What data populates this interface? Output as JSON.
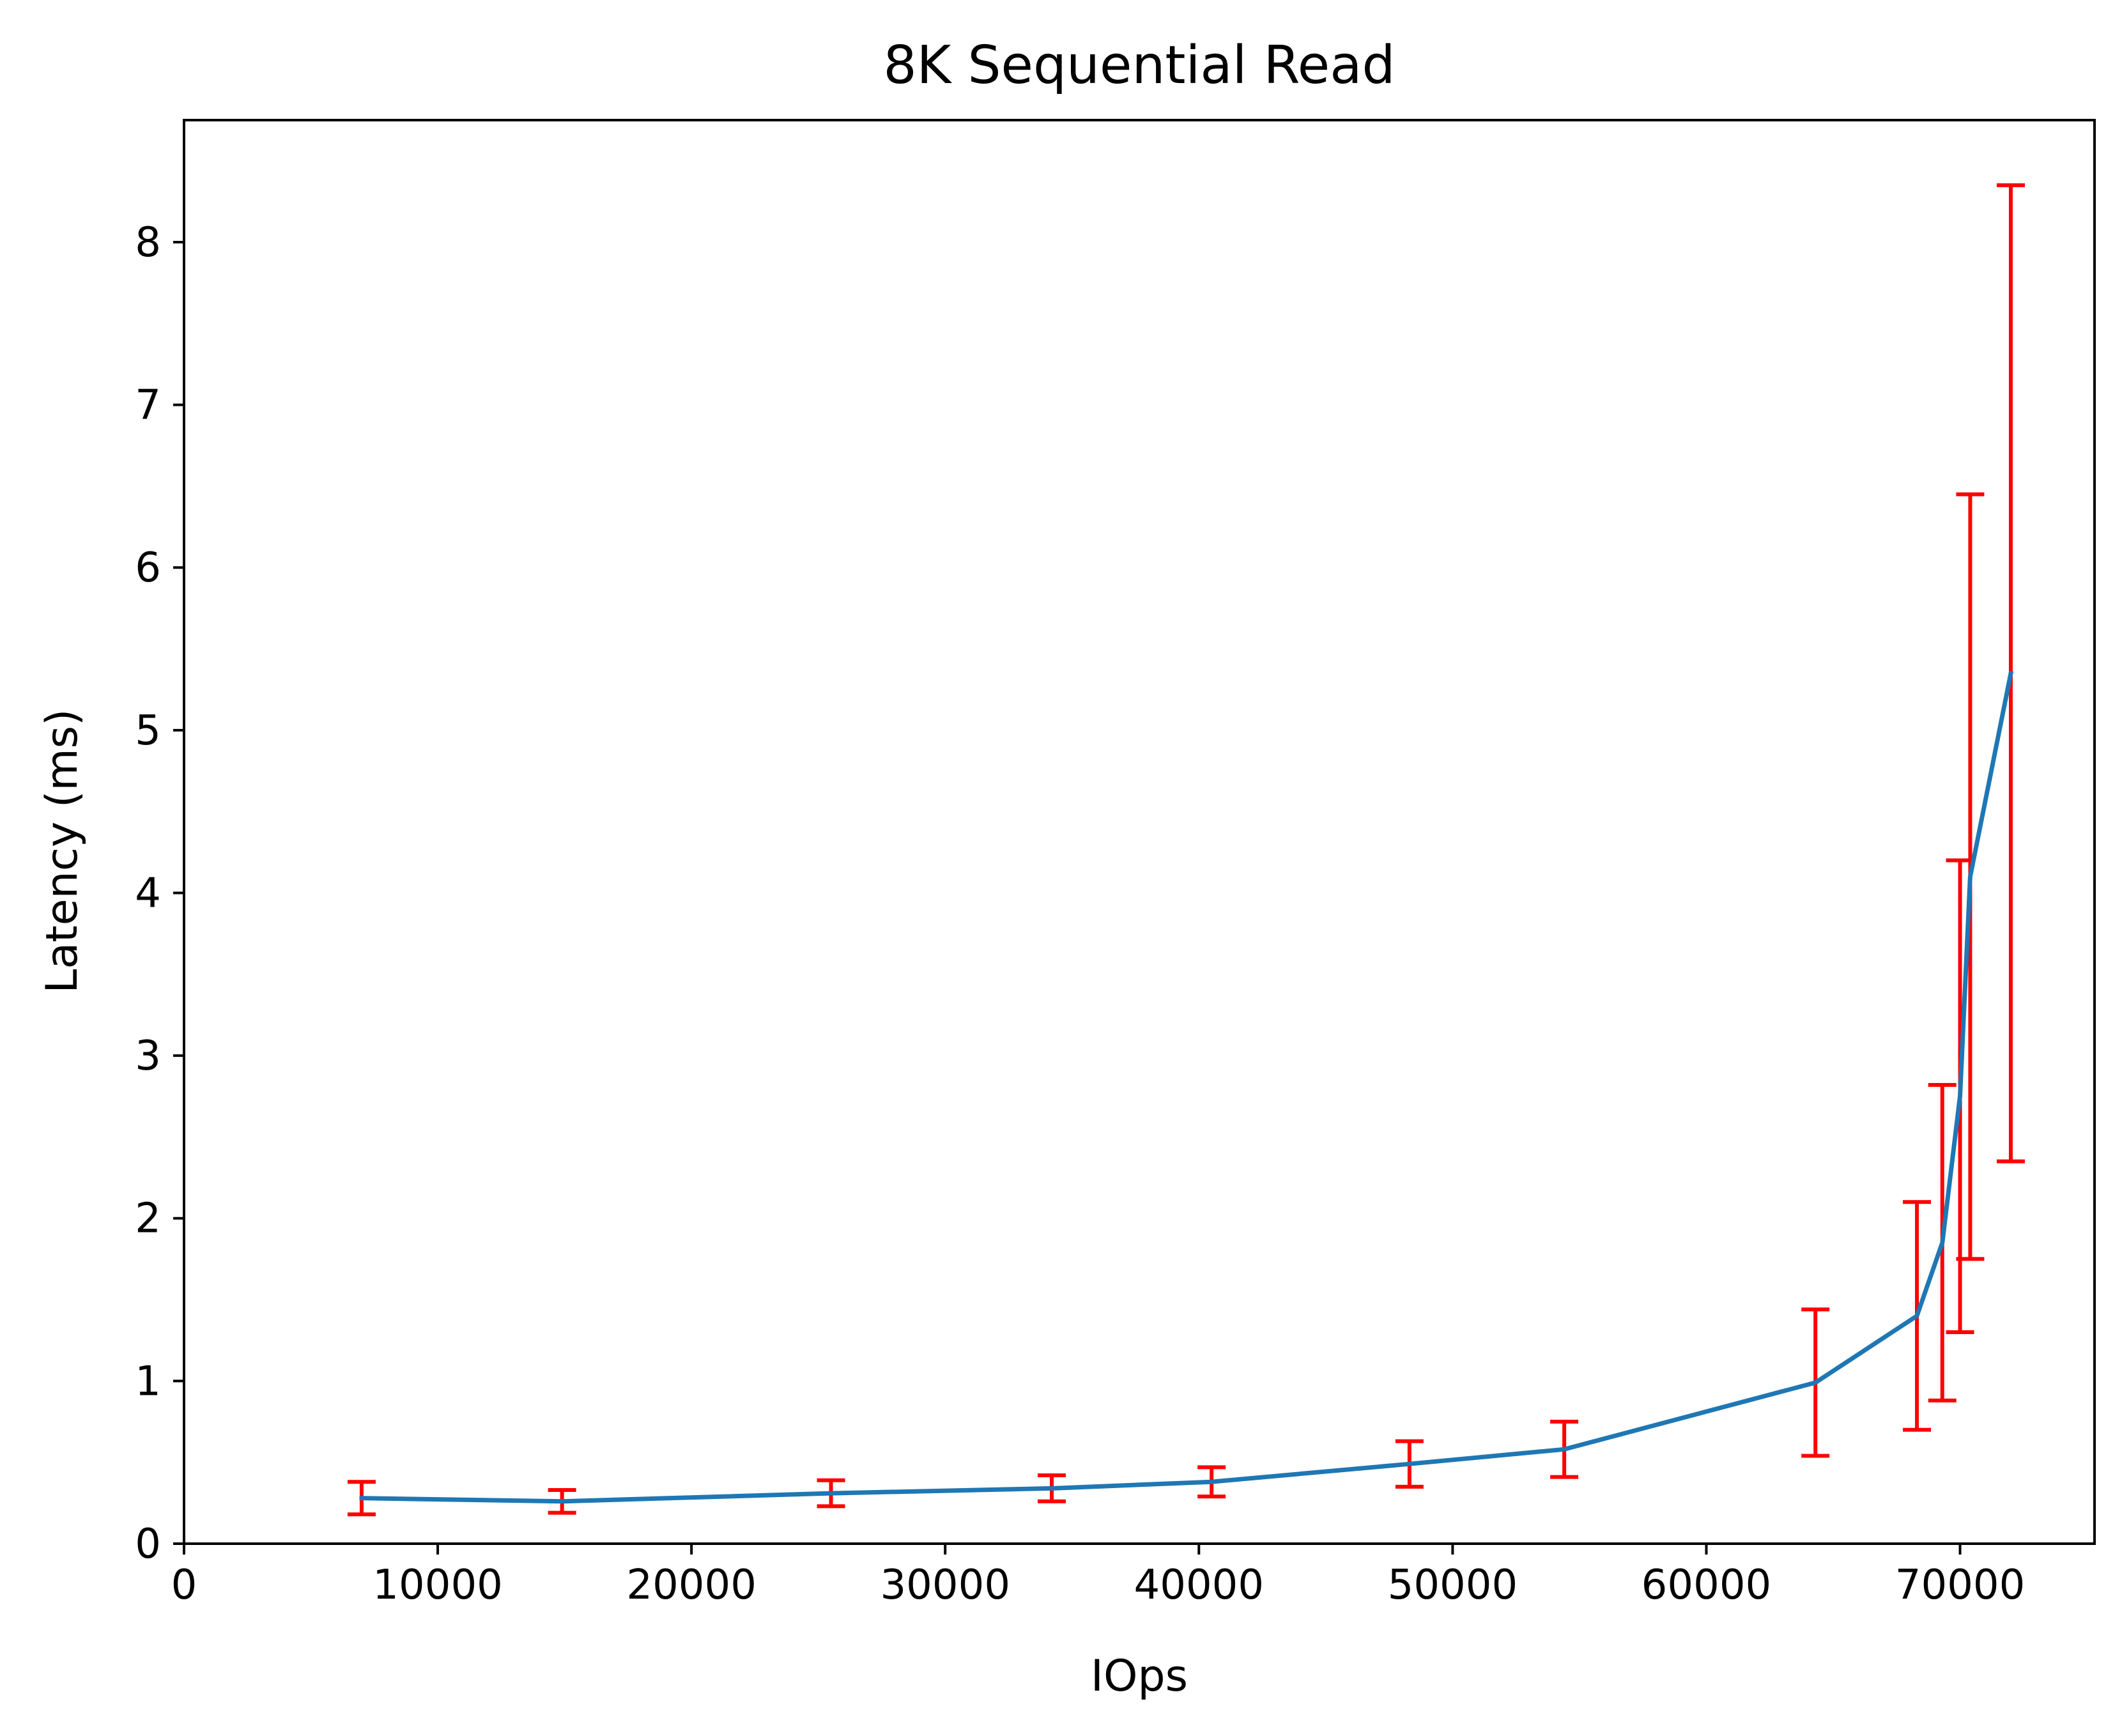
{
  "colors": {
    "line": "#1f77b4",
    "errorbar": "#ff0000",
    "axis": "#000000",
    "background": "#ffffff"
  },
  "chart_data": {
    "type": "line",
    "title": "8K  Sequential Read",
    "xlabel": "IOps",
    "ylabel": "Latency (ms)",
    "xlim": [
      0,
      75300
    ],
    "ylim": [
      0,
      8.75
    ],
    "xticks": [
      0,
      10000,
      20000,
      30000,
      40000,
      50000,
      60000,
      70000
    ],
    "xtick_labels": [
      "0",
      "10000",
      "20000",
      "30000",
      "40000",
      "50000",
      "60000",
      "70000"
    ],
    "yticks": [
      0,
      1,
      2,
      3,
      4,
      5,
      6,
      7,
      8
    ],
    "ytick_labels": [
      "0",
      "1",
      "2",
      "3",
      "4",
      "5",
      "6",
      "7",
      "8"
    ],
    "grid": false,
    "series": [
      {
        "x": [
          7000,
          14900,
          25500,
          34200,
          40500,
          48300,
          54400,
          64300,
          68300,
          69300,
          70000,
          70400,
          72000
        ],
        "y": [
          0.28,
          0.26,
          0.31,
          0.34,
          0.38,
          0.49,
          0.58,
          0.99,
          1.4,
          1.85,
          2.75,
          4.1,
          5.35
        ],
        "yerr": [
          0.1,
          0.07,
          0.08,
          0.08,
          0.09,
          0.14,
          0.17,
          0.45,
          0.7,
          0.97,
          1.45,
          2.35,
          3.0
        ]
      }
    ]
  }
}
